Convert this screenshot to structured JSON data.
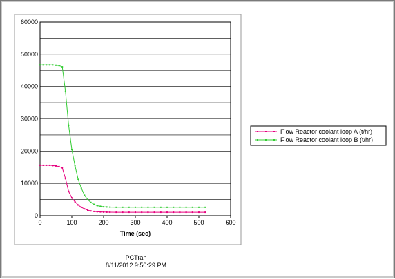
{
  "chart_data": {
    "type": "line",
    "xlabel": "Time (sec)",
    "ylabel": "",
    "xlim": [
      0,
      600
    ],
    "ylim": [
      0,
      60000
    ],
    "xticks": [
      0,
      100,
      200,
      300,
      400,
      500,
      600
    ],
    "yticks": [
      0,
      10000,
      20000,
      30000,
      40000,
      50000,
      60000
    ],
    "grid": "horizontal",
    "legend_position": "right",
    "series": [
      {
        "name": "Flow Reactor coolant loop A (t/hr)",
        "color": "#e6007e",
        "x": [
          0,
          10,
          20,
          30,
          40,
          50,
          60,
          70,
          80,
          90,
          100,
          110,
          120,
          130,
          140,
          150,
          160,
          170,
          180,
          190,
          200,
          210,
          220,
          240,
          260,
          280,
          300,
          320,
          340,
          360,
          380,
          400,
          420,
          440,
          460,
          480,
          500,
          520
        ],
        "y": [
          15600,
          15600,
          15600,
          15600,
          15500,
          15400,
          15200,
          14800,
          11500,
          7500,
          5500,
          4300,
          3300,
          2600,
          2100,
          1700,
          1450,
          1300,
          1200,
          1150,
          1100,
          1080,
          1060,
          1050,
          1050,
          1050,
          1050,
          1050,
          1050,
          1050,
          1050,
          1050,
          1050,
          1050,
          1050,
          1050,
          1050,
          1050
        ]
      },
      {
        "name": "Flow Reactor coolant loop B (t/hr)",
        "color": "#33cc33",
        "x": [
          0,
          10,
          20,
          30,
          40,
          50,
          60,
          70,
          80,
          90,
          100,
          110,
          120,
          130,
          140,
          150,
          160,
          170,
          180,
          190,
          200,
          210,
          220,
          240,
          260,
          280,
          300,
          320,
          340,
          360,
          380,
          400,
          420,
          440,
          460,
          480,
          500,
          520
        ],
        "y": [
          46700,
          46700,
          46700,
          46700,
          46700,
          46600,
          46500,
          46100,
          38500,
          28000,
          20500,
          15500,
          11200,
          8500,
          6300,
          5000,
          4100,
          3500,
          3100,
          2900,
          2750,
          2700,
          2650,
          2600,
          2600,
          2600,
          2600,
          2600,
          2600,
          2600,
          2600,
          2600,
          2600,
          2600,
          2600,
          2600,
          2600,
          2600
        ]
      }
    ]
  },
  "footer": {
    "program": "PCTran",
    "timestamp": "8/11/2012 9:50:29 PM"
  }
}
